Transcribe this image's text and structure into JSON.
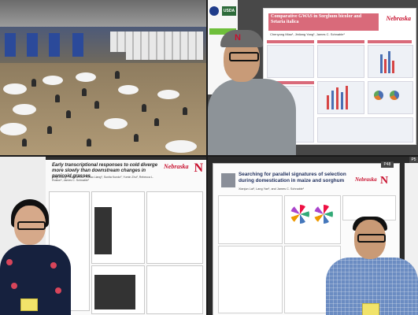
{
  "panels": {
    "hall": {},
    "gwas": {
      "poster_title": "Comparative GWAS in Sorghum bicolor and Setaria italica",
      "poster_authors": "Chenyong Miao¹, Jinliang Yang¹, James C. Schnable¹",
      "logo_text": "Nebraska",
      "usda_label": "USDA",
      "cap_letter": "N"
    },
    "cold": {
      "poster_title": "Early transcriptional responses to cold diverge more slowly than downstream changes in panicoid grasses",
      "poster_authors": "Xing Zhang¹, Xiaomin Ma¹, Zihao Liang¹, Sunita Kundu², Yumin Zhu², Rebecca L. Roston¹, James C. Schnable¹",
      "logo_text": "Nebraska",
      "logo_sub": "Lincoln",
      "logo_mark": "N"
    },
    "selection": {
      "poster_code": "P48",
      "poster_code_right": "P5",
      "poster_title": "Searching for parallel signatures of selection during domestication in maize and sorghum",
      "poster_authors": "Xianjun Lai¹, Lang Yan¹, and James C. Schnable¹",
      "logo_text": "Nebraska",
      "logo_sub": "Lincoln",
      "logo_mark": "N"
    }
  },
  "colors": {
    "nebraska_red": "#c8102e",
    "poster_accent": "#d96a7a",
    "usda_green": "#2d6b3a"
  }
}
